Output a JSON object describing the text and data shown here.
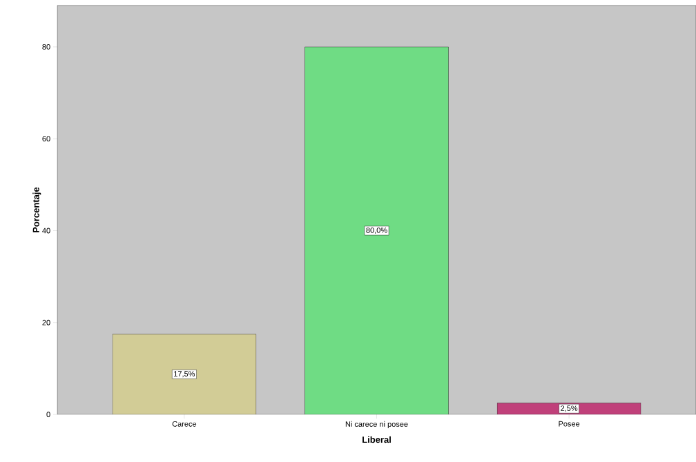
{
  "chart_data": {
    "type": "bar",
    "xlabel": "Liberal",
    "ylabel": "Porcentaje",
    "categories": [
      "Carece",
      "Ni carece ni posee",
      "Posee"
    ],
    "values": [
      17.5,
      80.0,
      2.5
    ],
    "colors": [
      "#d2cc96",
      "#6fdc84",
      "#c0407a"
    ],
    "value_labels": [
      "17,5%",
      "80,0%",
      "2,5%"
    ],
    "ylim": [
      0,
      89
    ],
    "yticks": [
      0,
      20,
      40,
      60,
      80
    ]
  }
}
